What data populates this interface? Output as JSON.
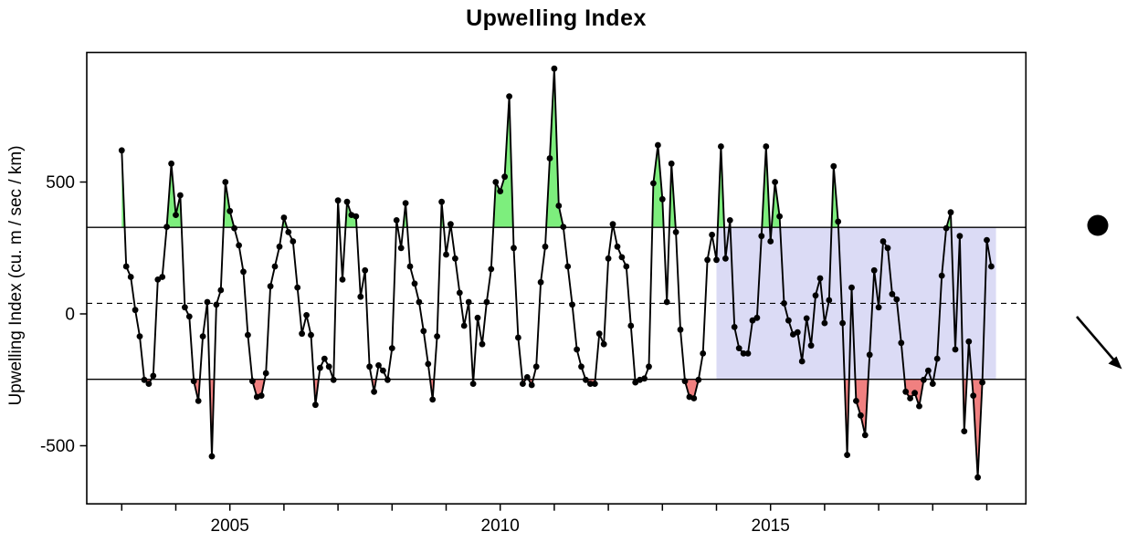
{
  "chart_data": {
    "type": "line",
    "title": "Upwelling Index",
    "ylabel": "Upwelling Index (cu. m / sec / km)",
    "xlabel": "",
    "frequency": "monthly",
    "x_start_year": 2003,
    "x_start_month": 1,
    "values": [
      620,
      180,
      140,
      15,
      -85,
      -250,
      -265,
      -235,
      130,
      140,
      330,
      570,
      375,
      450,
      25,
      -10,
      -255,
      -330,
      -85,
      45,
      -540,
      35,
      90,
      500,
      390,
      325,
      260,
      160,
      -80,
      -255,
      -315,
      -310,
      -225,
      105,
      180,
      255,
      365,
      310,
      275,
      100,
      -75,
      -5,
      -80,
      -345,
      -205,
      -170,
      -200,
      -250,
      430,
      130,
      425,
      375,
      370,
      65,
      165,
      -200,
      -295,
      -195,
      -215,
      -250,
      -130,
      355,
      250,
      420,
      180,
      115,
      45,
      -65,
      -190,
      -325,
      -85,
      425,
      225,
      340,
      210,
      80,
      -45,
      45,
      -265,
      -15,
      -115,
      45,
      170,
      500,
      465,
      520,
      825,
      250,
      -90,
      -265,
      -240,
      -270,
      -200,
      120,
      255,
      590,
      930,
      410,
      330,
      180,
      35,
      -135,
      -200,
      -250,
      -265,
      -265,
      -75,
      -115,
      210,
      340,
      255,
      215,
      180,
      -45,
      -260,
      -250,
      -245,
      -200,
      495,
      640,
      435,
      45,
      570,
      310,
      -60,
      -255,
      -315,
      -320,
      -250,
      -150,
      205,
      300,
      205,
      635,
      210,
      355,
      -50,
      -130,
      -150,
      -150,
      -25,
      -15,
      295,
      635,
      275,
      500,
      370,
      40,
      -25,
      -78,
      -70,
      -180,
      -17,
      -120,
      70,
      135,
      -35,
      52,
      560,
      350,
      -35,
      -535,
      100,
      -330,
      -385,
      -460,
      -155,
      165,
      25,
      275,
      250,
      75,
      55,
      -110,
      -295,
      -320,
      -300,
      -350,
      -250,
      -215,
      -265,
      -170,
      145,
      325,
      385,
      -135,
      295,
      -445,
      -105,
      -310,
      -620,
      -260,
      280,
      180
    ],
    "ylim": [
      -720,
      990
    ],
    "xlim": [
      2002.35,
      2019.72
    ],
    "grid": false,
    "legend_position": "none",
    "yticks": [
      {
        "value": 500,
        "label": "500"
      },
      {
        "value": 0,
        "label": "0"
      },
      {
        "value": -500,
        "label": "-500"
      }
    ],
    "xticks_years": [
      2003,
      2004,
      2005,
      2006,
      2007,
      2008,
      2009,
      2010,
      2011,
      2012,
      2013,
      2014,
      2015,
      2016,
      2017,
      2018,
      2019
    ],
    "xtick_labels": [
      {
        "year": 2005,
        "label": "2005"
      },
      {
        "year": 2010,
        "label": "2010"
      },
      {
        "year": 2015,
        "label": "2015"
      }
    ],
    "reference_lines": {
      "upper_solid": 328,
      "dashed_mid": 40,
      "lower_solid": -248
    },
    "highlight_region": {
      "x_start": 2014.0,
      "x_end": 2019.17,
      "y_bottom": -248,
      "y_top": 328
    },
    "colors": {
      "line": "#000000",
      "point": "#000000",
      "fill_above_upper": "#7DEE7D",
      "fill_below_lower": "#F08080",
      "highlight_region": "#DBDBF5",
      "reference_line": "#000000"
    },
    "margin_annotations": {
      "dot_marker": "large-filled-circle",
      "arrow_marker": "arrow-pointing-down-right"
    }
  }
}
